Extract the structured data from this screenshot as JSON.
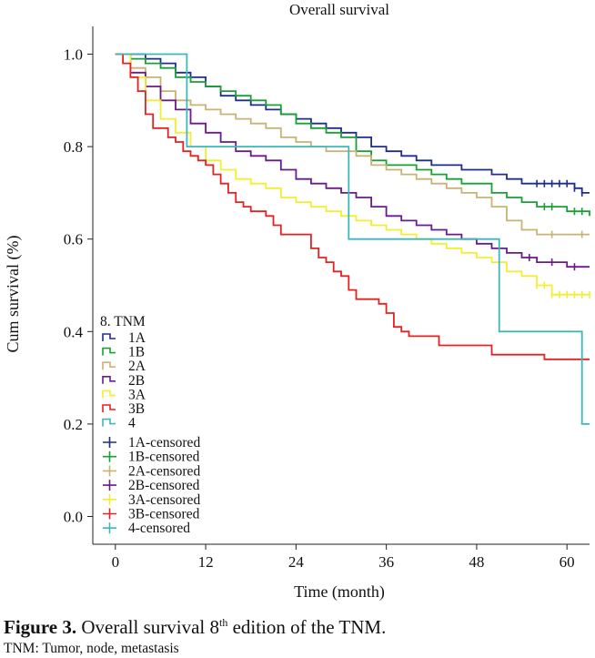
{
  "chart_data": {
    "type": "line",
    "title": "Overall survival",
    "xlabel": "Time (month)",
    "ylabel": "Cum survival (%)",
    "xlim": [
      -3,
      63
    ],
    "ylim": [
      -0.06,
      1.06
    ],
    "xticks": [
      0,
      12,
      24,
      36,
      48,
      60
    ],
    "xtick_labels": [
      "0",
      "12",
      "24",
      "36",
      "48",
      "60"
    ],
    "yticks": [
      0.0,
      0.2,
      0.4,
      0.6,
      0.8,
      1.0
    ],
    "ytick_labels": [
      "0.0",
      "0.2",
      "0.4",
      "0.6",
      "0.8",
      "1.0"
    ],
    "legend": {
      "title": "8. TNM",
      "placement": "lower-left",
      "censored_suffix": "-censored"
    },
    "series": [
      {
        "name": "1A",
        "color": "#1f2d8c",
        "points": [
          [
            0,
            1.0
          ],
          [
            2,
            1.0
          ],
          [
            4,
            0.99
          ],
          [
            6,
            0.98
          ],
          [
            8,
            0.96
          ],
          [
            10,
            0.95
          ],
          [
            12,
            0.93
          ],
          [
            14,
            0.91
          ],
          [
            16,
            0.9
          ],
          [
            18,
            0.89
          ],
          [
            20,
            0.88
          ],
          [
            22,
            0.87
          ],
          [
            24,
            0.86
          ],
          [
            26,
            0.85
          ],
          [
            28,
            0.84
          ],
          [
            30,
            0.83
          ],
          [
            32,
            0.82
          ],
          [
            34,
            0.8
          ],
          [
            36,
            0.79
          ],
          [
            38,
            0.78
          ],
          [
            40,
            0.77
          ],
          [
            42,
            0.76
          ],
          [
            44,
            0.76
          ],
          [
            46,
            0.75
          ],
          [
            48,
            0.75
          ],
          [
            50,
            0.74
          ],
          [
            52,
            0.73
          ],
          [
            54,
            0.72
          ],
          [
            56,
            0.72
          ],
          [
            58,
            0.72
          ],
          [
            60,
            0.72
          ],
          [
            61,
            0.71
          ],
          [
            62,
            0.7
          ],
          [
            63,
            0.7
          ]
        ],
        "censored": [
          56,
          57,
          58,
          59,
          60,
          61,
          62
        ]
      },
      {
        "name": "1B",
        "color": "#18a035",
        "points": [
          [
            0,
            1.0
          ],
          [
            2,
            0.99
          ],
          [
            4,
            0.98
          ],
          [
            6,
            0.97
          ],
          [
            8,
            0.95
          ],
          [
            10,
            0.94
          ],
          [
            12,
            0.93
          ],
          [
            14,
            0.92
          ],
          [
            16,
            0.91
          ],
          [
            18,
            0.9
          ],
          [
            20,
            0.89
          ],
          [
            22,
            0.87
          ],
          [
            24,
            0.85
          ],
          [
            26,
            0.84
          ],
          [
            28,
            0.83
          ],
          [
            30,
            0.82
          ],
          [
            32,
            0.79
          ],
          [
            34,
            0.77
          ],
          [
            36,
            0.76
          ],
          [
            38,
            0.76
          ],
          [
            40,
            0.75
          ],
          [
            42,
            0.74
          ],
          [
            44,
            0.73
          ],
          [
            46,
            0.72
          ],
          [
            48,
            0.72
          ],
          [
            50,
            0.7
          ],
          [
            52,
            0.69
          ],
          [
            54,
            0.68
          ],
          [
            56,
            0.67
          ],
          [
            58,
            0.67
          ],
          [
            60,
            0.66
          ],
          [
            61,
            0.66
          ],
          [
            63,
            0.65
          ]
        ],
        "censored": [
          57,
          58,
          61,
          62
        ]
      },
      {
        "name": "2A",
        "color": "#c8b274",
        "points": [
          [
            0,
            1.0
          ],
          [
            2,
            0.97
          ],
          [
            4,
            0.95
          ],
          [
            6,
            0.92
          ],
          [
            8,
            0.9
          ],
          [
            10,
            0.89
          ],
          [
            12,
            0.88
          ],
          [
            14,
            0.87
          ],
          [
            16,
            0.86
          ],
          [
            18,
            0.85
          ],
          [
            20,
            0.84
          ],
          [
            22,
            0.82
          ],
          [
            24,
            0.81
          ],
          [
            26,
            0.8
          ],
          [
            28,
            0.79
          ],
          [
            30,
            0.79
          ],
          [
            32,
            0.78
          ],
          [
            34,
            0.76
          ],
          [
            36,
            0.75
          ],
          [
            38,
            0.74
          ],
          [
            40,
            0.73
          ],
          [
            42,
            0.72
          ],
          [
            44,
            0.71
          ],
          [
            46,
            0.7
          ],
          [
            48,
            0.69
          ],
          [
            50,
            0.67
          ],
          [
            52,
            0.64
          ],
          [
            54,
            0.62
          ],
          [
            56,
            0.61
          ],
          [
            63,
            0.61
          ]
        ],
        "censored": [
          58,
          62
        ]
      },
      {
        "name": "2B",
        "color": "#6b1a8a",
        "points": [
          [
            0,
            1.0
          ],
          [
            2,
            0.96
          ],
          [
            4,
            0.93
          ],
          [
            6,
            0.9
          ],
          [
            8,
            0.88
          ],
          [
            10,
            0.85
          ],
          [
            12,
            0.83
          ],
          [
            14,
            0.81
          ],
          [
            16,
            0.79
          ],
          [
            18,
            0.78
          ],
          [
            20,
            0.77
          ],
          [
            22,
            0.75
          ],
          [
            24,
            0.73
          ],
          [
            26,
            0.72
          ],
          [
            28,
            0.71
          ],
          [
            30,
            0.7
          ],
          [
            32,
            0.69
          ],
          [
            34,
            0.67
          ],
          [
            36,
            0.65
          ],
          [
            38,
            0.64
          ],
          [
            40,
            0.63
          ],
          [
            42,
            0.62
          ],
          [
            44,
            0.61
          ],
          [
            46,
            0.6
          ],
          [
            48,
            0.59
          ],
          [
            50,
            0.58
          ],
          [
            52,
            0.57
          ],
          [
            54,
            0.56
          ],
          [
            56,
            0.55
          ],
          [
            58,
            0.55
          ],
          [
            60,
            0.54
          ],
          [
            63,
            0.54
          ]
        ],
        "censored": [
          55,
          58,
          61
        ]
      },
      {
        "name": "3A",
        "color": "#f2ee30",
        "points": [
          [
            0,
            1.0
          ],
          [
            2,
            0.95
          ],
          [
            4,
            0.9
          ],
          [
            6,
            0.86
          ],
          [
            8,
            0.83
          ],
          [
            10,
            0.8
          ],
          [
            12,
            0.77
          ],
          [
            14,
            0.75
          ],
          [
            16,
            0.73
          ],
          [
            18,
            0.72
          ],
          [
            20,
            0.71
          ],
          [
            22,
            0.69
          ],
          [
            24,
            0.68
          ],
          [
            26,
            0.67
          ],
          [
            28,
            0.66
          ],
          [
            30,
            0.65
          ],
          [
            32,
            0.64
          ],
          [
            34,
            0.63
          ],
          [
            36,
            0.62
          ],
          [
            38,
            0.61
          ],
          [
            40,
            0.6
          ],
          [
            42,
            0.59
          ],
          [
            44,
            0.58
          ],
          [
            46,
            0.57
          ],
          [
            48,
            0.56
          ],
          [
            50,
            0.55
          ],
          [
            52,
            0.53
          ],
          [
            54,
            0.52
          ],
          [
            56,
            0.5
          ],
          [
            58,
            0.48
          ],
          [
            60,
            0.48
          ],
          [
            63,
            0.48
          ]
        ],
        "censored": [
          56,
          57,
          58,
          59,
          60,
          61,
          62,
          63
        ]
      },
      {
        "name": "3B",
        "color": "#e42222",
        "points": [
          [
            0,
            1.0
          ],
          [
            1,
            0.98
          ],
          [
            2,
            0.95
          ],
          [
            3,
            0.92
          ],
          [
            4,
            0.87
          ],
          [
            5,
            0.84
          ],
          [
            7,
            0.82
          ],
          [
            8,
            0.81
          ],
          [
            9,
            0.79
          ],
          [
            10,
            0.78
          ],
          [
            11,
            0.77
          ],
          [
            12,
            0.76
          ],
          [
            13,
            0.74
          ],
          [
            14,
            0.72
          ],
          [
            15,
            0.7
          ],
          [
            16,
            0.68
          ],
          [
            17,
            0.67
          ],
          [
            18,
            0.66
          ],
          [
            20,
            0.65
          ],
          [
            21,
            0.63
          ],
          [
            22,
            0.61
          ],
          [
            24,
            0.61
          ],
          [
            25,
            0.61
          ],
          [
            26,
            0.58
          ],
          [
            27,
            0.56
          ],
          [
            28,
            0.55
          ],
          [
            29,
            0.53
          ],
          [
            30,
            0.52
          ],
          [
            31,
            0.49
          ],
          [
            32,
            0.47
          ],
          [
            35,
            0.46
          ],
          [
            36,
            0.44
          ],
          [
            37,
            0.41
          ],
          [
            38,
            0.4
          ],
          [
            39,
            0.39
          ],
          [
            42,
            0.39
          ],
          [
            43,
            0.37
          ],
          [
            49,
            0.37
          ],
          [
            50,
            0.35
          ],
          [
            56,
            0.35
          ],
          [
            57,
            0.34
          ],
          [
            63,
            0.34
          ]
        ],
        "censored": []
      },
      {
        "name": "4",
        "color": "#3cb8bc",
        "points": [
          [
            0,
            1.0
          ],
          [
            9.5,
            1.0
          ],
          [
            9.5,
            0.8
          ],
          [
            31,
            0.8
          ],
          [
            31,
            0.6
          ],
          [
            51,
            0.6
          ],
          [
            51,
            0.4
          ],
          [
            62,
            0.4
          ],
          [
            62,
            0.2
          ],
          [
            63,
            0.2
          ]
        ],
        "censored": []
      }
    ]
  },
  "caption": {
    "label": "Figure 3.",
    "text": "Overall survival 8",
    "superscript": "th",
    "text_after": " edition of the TNM.",
    "note": "TNM: Tumor, node, metastasis"
  }
}
